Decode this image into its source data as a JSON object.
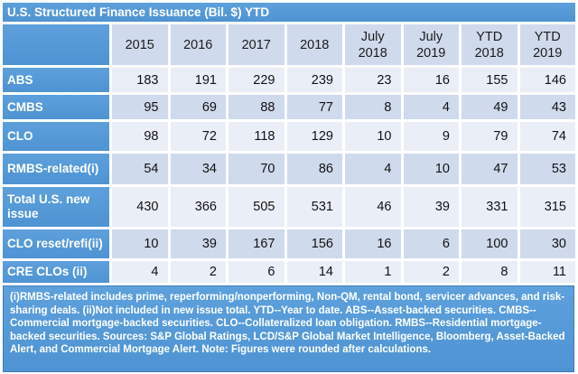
{
  "title": "U.S. Structured Finance Issuance (Bil. $) YTD",
  "colors": {
    "accent_blue": "#4f93d3",
    "accent_blue_light": "#5da0dc",
    "band_dark": "#cfdaec",
    "band_light": "#eaeef7",
    "footnote_border": "#3d7cb8"
  },
  "table": {
    "columns": [
      "2015",
      "2016",
      "2017",
      "2018",
      "July\n2018",
      "July\n2019",
      "YTD\n2018",
      "YTD\n2019"
    ],
    "rows": [
      {
        "label": "ABS",
        "values": [
          183,
          191,
          229,
          239,
          23,
          16,
          155,
          146
        ]
      },
      {
        "label": "CMBS",
        "values": [
          95,
          69,
          88,
          77,
          8,
          4,
          49,
          43
        ]
      },
      {
        "label": "CLO",
        "values": [
          98,
          72,
          118,
          129,
          10,
          9,
          79,
          74
        ]
      },
      {
        "label": "RMBS-related(i)",
        "values": [
          54,
          34,
          70,
          86,
          4,
          10,
          47,
          53
        ]
      },
      {
        "label": "Total U.S. new issue",
        "values": [
          430,
          366,
          505,
          531,
          46,
          39,
          331,
          315
        ]
      },
      {
        "label": "CLO reset/refi(ii)",
        "values": [
          10,
          39,
          167,
          156,
          16,
          6,
          100,
          30
        ]
      },
      {
        "label": "CRE CLOs (ii)",
        "values": [
          4,
          2,
          6,
          14,
          1,
          2,
          8,
          11
        ]
      }
    ]
  },
  "footnote": "(i)RMBS-related includes prime, reperforming/nonperforming, Non-QM, rental bond, servicer advances, and risk-sharing deals. (ii)Not included in new issue total. YTD--Year to date. ABS--Asset-backed securities. CMBS--Commercial mortgage-backed securities. CLO--Collateralized loan obligation. RMBS--Residential mortgage-backed securities. Sources: S&P Global Ratings, LCD/S&P Global Market Intelligence, Bloomberg, Asset-Backed Alert, and Commercial Mortgage Alert. Note: Figures were rounded after calculations.",
  "chart_data": {
    "type": "table",
    "title": "U.S. Structured Finance Issuance (Bil. $) YTD",
    "columns": [
      "2015",
      "2016",
      "2017",
      "2018",
      "July 2018",
      "July 2019",
      "YTD 2018",
      "YTD 2019"
    ],
    "rows": [
      {
        "label": "ABS",
        "values": [
          183,
          191,
          229,
          239,
          23,
          16,
          155,
          146
        ]
      },
      {
        "label": "CMBS",
        "values": [
          95,
          69,
          88,
          77,
          8,
          4,
          49,
          43
        ]
      },
      {
        "label": "CLO",
        "values": [
          98,
          72,
          118,
          129,
          10,
          9,
          79,
          74
        ]
      },
      {
        "label": "RMBS-related(i)",
        "values": [
          54,
          34,
          70,
          86,
          4,
          10,
          47,
          53
        ]
      },
      {
        "label": "Total U.S. new issue",
        "values": [
          430,
          366,
          505,
          531,
          46,
          39,
          331,
          315
        ]
      },
      {
        "label": "CLO reset/refi(ii)",
        "values": [
          10,
          39,
          167,
          156,
          16,
          6,
          100,
          30
        ]
      },
      {
        "label": "CRE CLOs (ii)",
        "values": [
          4,
          2,
          6,
          14,
          1,
          2,
          8,
          11
        ]
      }
    ]
  }
}
